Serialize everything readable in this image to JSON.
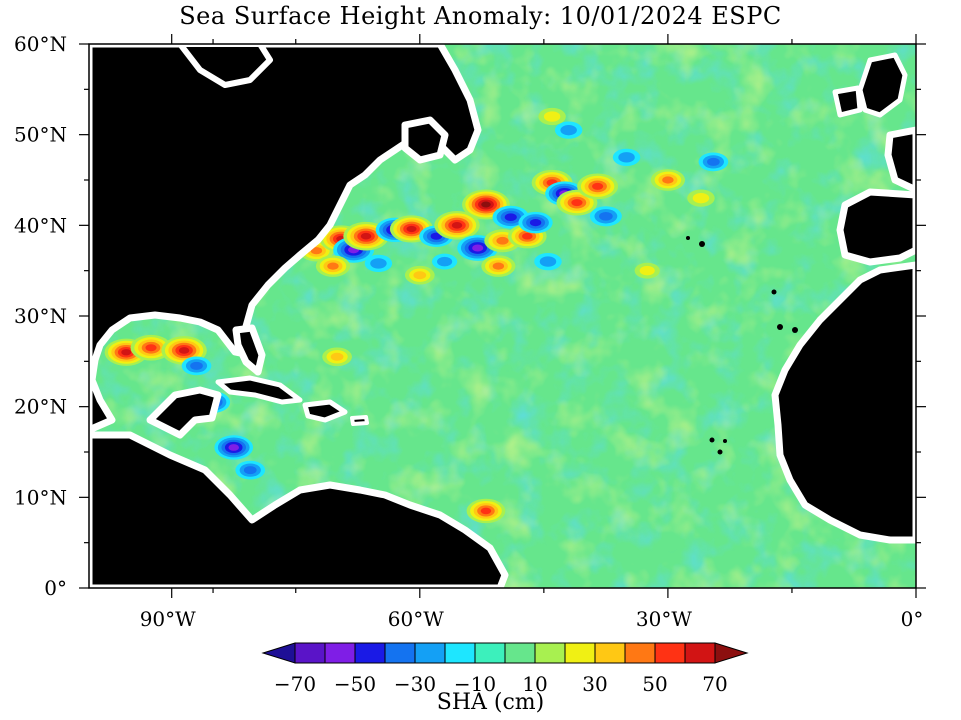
{
  "title": "Sea Surface Height Anomaly: 10/01/2024 ESPC",
  "map": {
    "lon_range": [
      -100,
      0
    ],
    "lat_range": [
      0,
      60
    ],
    "land_color": "#000000",
    "coast_fringe_color": "#ffffff",
    "ocean_background_color": "#66e68c",
    "lat_labels": [
      {
        "lat": 60,
        "label": "60°N"
      },
      {
        "lat": 50,
        "label": "50°N"
      },
      {
        "lat": 40,
        "label": "40°N"
      },
      {
        "lat": 30,
        "label": "30°N"
      },
      {
        "lat": 20,
        "label": "20°N"
      },
      {
        "lat": 10,
        "label": "10°N"
      },
      {
        "lat": 0,
        "label": "0°"
      }
    ],
    "lon_labels": [
      {
        "lon": -90,
        "label": "90°W"
      },
      {
        "lon": -60,
        "label": "60°W"
      },
      {
        "lon": -30,
        "label": "30°W"
      },
      {
        "lon": 0,
        "label": "0°"
      }
    ],
    "minor_lat_ticks": [
      5,
      15,
      25,
      35,
      45,
      55
    ],
    "minor_lon_ticks": [
      -85,
      -75,
      -45,
      -15
    ],
    "anomaly_features": [
      {
        "lon": -72.5,
        "lat": 37.2,
        "value": 40
      },
      {
        "lon": -69.5,
        "lat": 38.5,
        "value": 60
      },
      {
        "lon": -68.0,
        "lat": 37.3,
        "value": -55
      },
      {
        "lon": -66.5,
        "lat": 38.8,
        "value": 65
      },
      {
        "lon": -63.0,
        "lat": 39.5,
        "value": -50
      },
      {
        "lon": -61.0,
        "lat": 39.6,
        "value": 60
      },
      {
        "lon": -58.0,
        "lat": 38.8,
        "value": -40
      },
      {
        "lon": -55.5,
        "lat": 40.0,
        "value": 65
      },
      {
        "lon": -53.0,
        "lat": 37.5,
        "value": -55
      },
      {
        "lon": -52.0,
        "lat": 42.3,
        "value": 70
      },
      {
        "lon": -50.0,
        "lat": 38.3,
        "value": 45
      },
      {
        "lon": -49.0,
        "lat": 40.9,
        "value": -45
      },
      {
        "lon": -47.0,
        "lat": 38.8,
        "value": 50
      },
      {
        "lon": -46.0,
        "lat": 40.3,
        "value": -40
      },
      {
        "lon": -44.0,
        "lat": 44.7,
        "value": 55
      },
      {
        "lon": -42.5,
        "lat": 43.5,
        "value": -50
      },
      {
        "lon": -41.0,
        "lat": 42.5,
        "value": 55
      },
      {
        "lon": -38.5,
        "lat": 44.3,
        "value": 55
      },
      {
        "lon": -37.5,
        "lat": 41.0,
        "value": -35
      },
      {
        "lon": -44.5,
        "lat": 36.0,
        "value": -25
      },
      {
        "lon": -50.5,
        "lat": 35.5,
        "value": 40
      },
      {
        "lon": -57.0,
        "lat": 36.0,
        "value": -20
      },
      {
        "lon": -60.0,
        "lat": 34.5,
        "value": 30
      },
      {
        "lon": -70.5,
        "lat": 35.5,
        "value": 40
      },
      {
        "lon": -65.0,
        "lat": 35.8,
        "value": -25
      },
      {
        "lon": -95.5,
        "lat": 26.0,
        "value": 60
      },
      {
        "lon": -92.5,
        "lat": 26.5,
        "value": 55
      },
      {
        "lon": -88.5,
        "lat": 26.2,
        "value": 65
      },
      {
        "lon": -87.0,
        "lat": 24.5,
        "value": -30
      },
      {
        "lon": -85.0,
        "lat": 20.5,
        "value": -40
      },
      {
        "lon": -82.5,
        "lat": 15.5,
        "value": -50
      },
      {
        "lon": -80.5,
        "lat": 13.0,
        "value": -30
      },
      {
        "lon": -52.0,
        "lat": 8.5,
        "value": 50
      },
      {
        "lon": -24.5,
        "lat": 47.0,
        "value": -30
      },
      {
        "lon": -30.0,
        "lat": 45.0,
        "value": 40
      },
      {
        "lon": -35.0,
        "lat": 47.5,
        "value": -25
      },
      {
        "lon": -42.0,
        "lat": 50.5,
        "value": -25
      },
      {
        "lon": -44.0,
        "lat": 52.0,
        "value": 25
      },
      {
        "lon": -70.0,
        "lat": 25.5,
        "value": 30
      },
      {
        "lon": -32.5,
        "lat": 35.0,
        "value": 20
      },
      {
        "lon": -26.0,
        "lat": 43.0,
        "value": 25
      }
    ]
  },
  "colorbar": {
    "label": "SHA (cm)",
    "levels": [
      -70,
      -60,
      -50,
      -40,
      -30,
      -20,
      -10,
      0,
      10,
      20,
      30,
      40,
      50,
      60,
      70
    ],
    "tick_labels": [
      "−70",
      "−50",
      "−30",
      "−10",
      "10",
      "30",
      "50",
      "70"
    ],
    "tick_values": [
      -70,
      -50,
      -30,
      -10,
      10,
      30,
      50,
      70
    ],
    "colors": [
      "#1e0f96",
      "#5a14c8",
      "#7f1ee6",
      "#1a1ae6",
      "#1473f0",
      "#14a0f5",
      "#1ee6ff",
      "#3cf0bc",
      "#66e68c",
      "#a8f050",
      "#f0f014",
      "#ffc814",
      "#ff7814",
      "#ff3214",
      "#d21414",
      "#8c0f0f"
    ]
  }
}
